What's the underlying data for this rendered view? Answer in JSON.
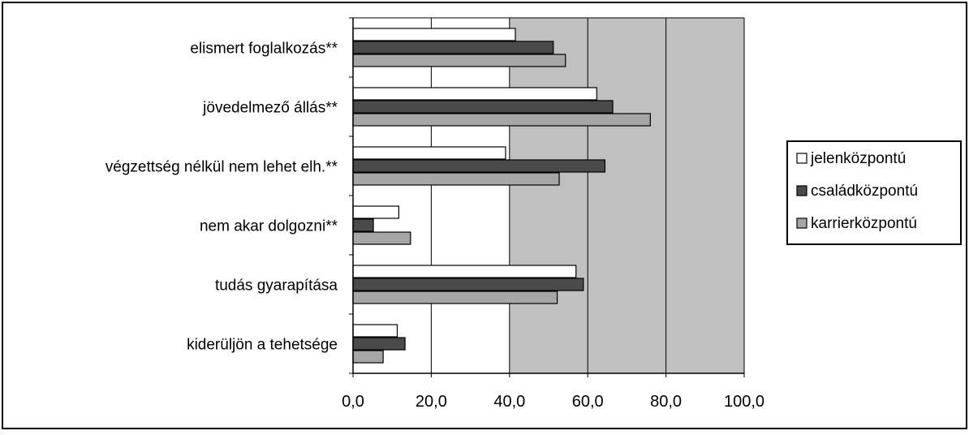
{
  "chart_data": {
    "type": "bar",
    "orientation": "horizontal",
    "categories": [
      "elismert foglalkozás**",
      "jövedelmező állás**",
      "végzettség nélkül nem lehet elh.**",
      "nem akar dolgozni**",
      "tudás gyarapítása",
      "kiderüljön a tehetsége"
    ],
    "series": [
      {
        "name": "jelenközpontú",
        "color": "#ffffff",
        "values": [
          41.5,
          62.3,
          39.0,
          11.7,
          57.0,
          11.3
        ]
      },
      {
        "name": "családközpontú",
        "color": "#4a4a4a",
        "values": [
          51.2,
          66.4,
          64.4,
          5.2,
          58.9,
          13.3
        ]
      },
      {
        "name": "karrierközpontú",
        "color": "#a6a6a6",
        "values": [
          54.3,
          76.0,
          52.7,
          14.7,
          52.2,
          7.7
        ]
      }
    ],
    "xlim": [
      0,
      100
    ],
    "xticks": [
      "0,0",
      "20,0",
      "40,0",
      "60,0",
      "80,0",
      "100,0"
    ],
    "plot_background": "#c0c0c0",
    "grid": "vertical",
    "legend": "right"
  }
}
